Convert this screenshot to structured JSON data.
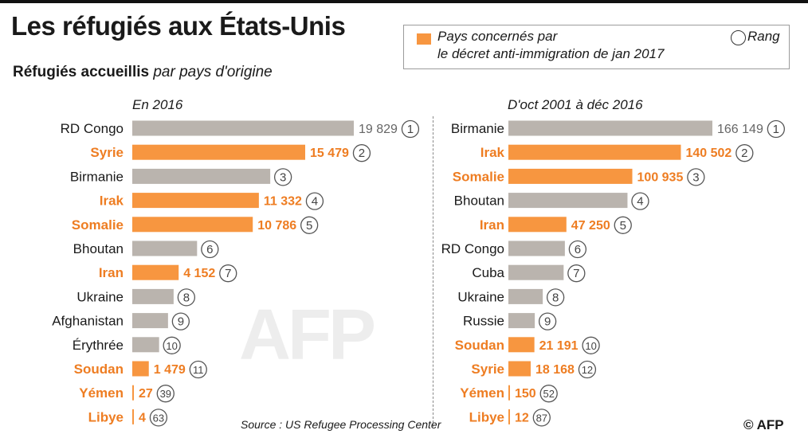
{
  "header": {
    "title": "Les réfugiés aux États-Unis",
    "subtitle_bold": "Réfugiés accueillis",
    "subtitle_italic": "par pays d'origine"
  },
  "legend": {
    "line1": "Pays concernés par",
    "line2": "le décret anti-immigration de jan 2017",
    "rank_label": "Rang"
  },
  "colors": {
    "highlight": "#f79640",
    "neutral": "#bab4ae",
    "highlight_text": "#ee7d22",
    "value_neutral": "#666666"
  },
  "chart_data": [
    {
      "type": "bar",
      "orientation": "horizontal",
      "panel_label": "En 2016",
      "xlim": [
        0,
        19829
      ],
      "rows": [
        {
          "country": "RD Congo",
          "value": 19829,
          "value_label": "19 829",
          "rank": "1",
          "highlight": false
        },
        {
          "country": "Syrie",
          "value": 15479,
          "value_label": "15 479",
          "rank": "2",
          "highlight": true
        },
        {
          "country": "Birmanie",
          "value": 12350,
          "value_label": "",
          "rank": "3",
          "highlight": false
        },
        {
          "country": "Irak",
          "value": 11332,
          "value_label": "11 332",
          "rank": "4",
          "highlight": true
        },
        {
          "country": "Somalie",
          "value": 10786,
          "value_label": "10 786",
          "rank": "5",
          "highlight": true
        },
        {
          "country": "Bhoutan",
          "value": 5800,
          "value_label": "",
          "rank": "6",
          "highlight": false
        },
        {
          "country": "Iran",
          "value": 4152,
          "value_label": "4 152",
          "rank": "7",
          "highlight": true
        },
        {
          "country": "Ukraine",
          "value": 3700,
          "value_label": "",
          "rank": "8",
          "highlight": false
        },
        {
          "country": "Afghanistan",
          "value": 3200,
          "value_label": "",
          "rank": "9",
          "highlight": false
        },
        {
          "country": "Érythrée",
          "value": 2400,
          "value_label": "",
          "rank": "10",
          "highlight": false
        },
        {
          "country": "Soudan",
          "value": 1479,
          "value_label": "1 479",
          "rank": "11",
          "highlight": true
        },
        {
          "country": "Yémen",
          "value": 27,
          "value_label": "27",
          "rank": "39",
          "highlight": true
        },
        {
          "country": "Libye",
          "value": 4,
          "value_label": "4",
          "rank": "63",
          "highlight": true
        }
      ]
    },
    {
      "type": "bar",
      "orientation": "horizontal",
      "panel_label": "D'oct 2001 à déc 2016",
      "xlim": [
        0,
        166149
      ],
      "rows": [
        {
          "country": "Birmanie",
          "value": 166149,
          "value_label": "166 149",
          "rank": "1",
          "highlight": false
        },
        {
          "country": "Irak",
          "value": 140502,
          "value_label": "140 502",
          "rank": "2",
          "highlight": true
        },
        {
          "country": "Somalie",
          "value": 100935,
          "value_label": "100 935",
          "rank": "3",
          "highlight": true
        },
        {
          "country": "Bhoutan",
          "value": 97000,
          "value_label": "",
          "rank": "4",
          "highlight": false
        },
        {
          "country": "Iran",
          "value": 47250,
          "value_label": "47 250",
          "rank": "5",
          "highlight": true
        },
        {
          "country": "RD Congo",
          "value": 46000,
          "value_label": "",
          "rank": "6",
          "highlight": false
        },
        {
          "country": "Cuba",
          "value": 45000,
          "value_label": "",
          "rank": "7",
          "highlight": false
        },
        {
          "country": "Ukraine",
          "value": 28000,
          "value_label": "",
          "rank": "8",
          "highlight": false
        },
        {
          "country": "Russie",
          "value": 21500,
          "value_label": "",
          "rank": "9",
          "highlight": false
        },
        {
          "country": "Soudan",
          "value": 21191,
          "value_label": "21 191",
          "rank": "10",
          "highlight": true
        },
        {
          "country": "Syrie",
          "value": 18168,
          "value_label": "18 168",
          "rank": "12",
          "highlight": true
        },
        {
          "country": "Yémen",
          "value": 150,
          "value_label": "150",
          "rank": "52",
          "highlight": true
        },
        {
          "country": "Libye",
          "value": 12,
          "value_label": "12",
          "rank": "87",
          "highlight": true
        }
      ]
    }
  ],
  "footer": {
    "source": "Source : US Refugee Processing Center",
    "copyright": "© AFP",
    "watermark": "AFP"
  }
}
